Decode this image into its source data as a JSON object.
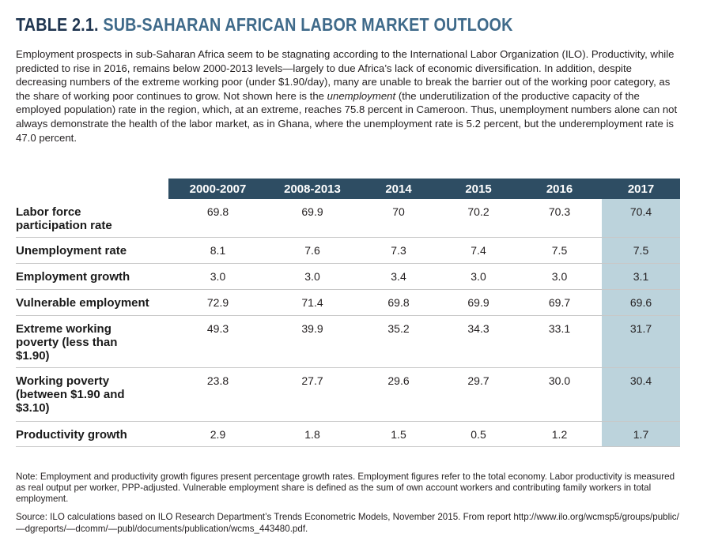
{
  "header": {
    "label": "TABLE 2.1.",
    "title": "SUB-SAHARAN AFRICAN LABOR MARKET OUTLOOK"
  },
  "intro": {
    "before": "Employment prospects in sub-Saharan Africa seem to be stagnating according to the International Labor Organization (ILO). Productivity, while predicted to rise in 2016, remains below 2000-2013 levels—largely to due Africa’s lack of economic diversification. In addition, despite decreasing numbers of the extreme working poor (under $1.90/day), many are unable to break the barrier out of the working poor category, as the share of working poor continues to grow. Not shown here is the ",
    "emphasis": "unemployment",
    "after": " (the underutilization of the productive capacity of the employed population) rate in the region, which, at an extreme, reaches 75.8 percent in Cameroon. Thus, unemployment numbers alone can not always demonstrate the health of the labor market, as in Ghana, where the unemployment rate is 5.2 percent, but the underemployment rate is 47.0 percent."
  },
  "table": {
    "columns": [
      "2000-2007",
      "2008-2013",
      "2014",
      "2015",
      "2016",
      "2017"
    ],
    "rows": [
      {
        "label": "Labor force participation rate",
        "values": [
          "69.8",
          "69.9",
          "70",
          "70.2",
          "70.3",
          "70.4"
        ]
      },
      {
        "label": "Unemployment rate",
        "values": [
          "8.1",
          "7.6",
          "7.3",
          "7.4",
          "7.5",
          "7.5"
        ]
      },
      {
        "label": "Employment growth",
        "values": [
          "3.0",
          "3.0",
          "3.4",
          "3.0",
          "3.0",
          "3.1"
        ]
      },
      {
        "label": "Vulnerable employment",
        "values": [
          "72.9",
          "71.4",
          "69.8",
          "69.9",
          "69.7",
          "69.6"
        ]
      },
      {
        "label": "Extreme working poverty (less than $1.90)",
        "values": [
          "49.3",
          "39.9",
          "35.2",
          "34.3",
          "33.1",
          "31.7"
        ]
      },
      {
        "label": "Working poverty (between $1.90 and $3.10)",
        "values": [
          "23.8",
          "27.7",
          "29.6",
          "29.7",
          "30.0",
          "30.4"
        ]
      },
      {
        "label": "Productivity growth",
        "values": [
          "2.9",
          "1.8",
          "1.5",
          "0.5",
          "1.2",
          "1.7"
        ]
      }
    ]
  },
  "note": "Note: Employment and productivity growth figures present percentage growth rates. Employment figures refer to the total economy. Labor productivity is measured as real output per worker, PPP-adjusted. Vulnerable employment share is defined as the sum of own account workers and contributing family workers in total employment.",
  "source": "Source: ILO calculations based on ILO Research Department’s Trends Econometric Models, November 2015. From report http://www.ilo.org/wcmsp5/groups/public/—dgreports/—dcomm/—publ/documents/publication/wcms_443480.pdf."
}
